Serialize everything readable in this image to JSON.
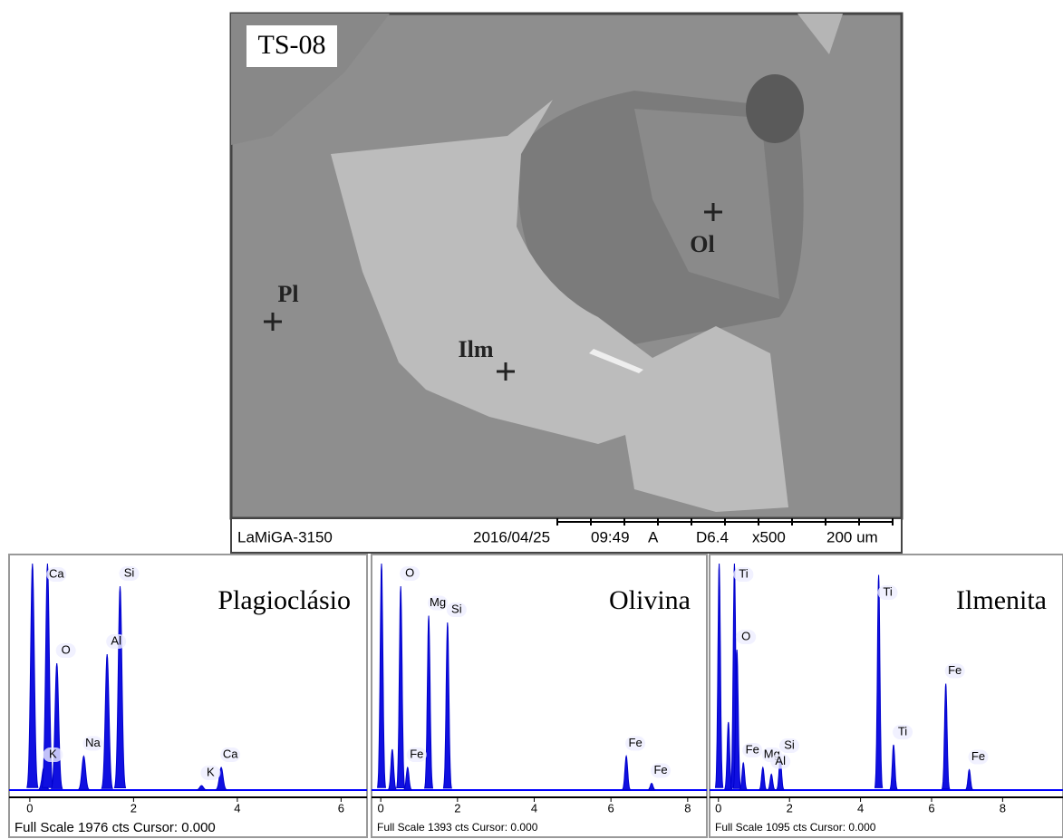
{
  "sem": {
    "sample": "TS-08",
    "points": [
      {
        "label": "Pl"
      },
      {
        "label": "Ilm"
      },
      {
        "label": "Ol"
      }
    ],
    "footer": {
      "instrument": "LaMiGA-3150",
      "date": "2016/04/25",
      "time": "09:49",
      "mode": "A",
      "wd": "D6.4",
      "mag": "x500",
      "scale": "200 um"
    }
  },
  "spectra": [
    {
      "title": "Plagioclásio",
      "xlim": [
        -0.4,
        6.5
      ],
      "xticks": [
        0,
        2,
        4,
        6
      ],
      "footer": "Full Scale 1976 cts Cursor: 0.000",
      "peaks": [
        {
          "energy": 0.05,
          "height": 1.0
        },
        {
          "label": "K",
          "energy": 0.27,
          "height": 0.1
        },
        {
          "label": "Ca",
          "energy": 0.34,
          "height": 1.0
        },
        {
          "label": "O",
          "energy": 0.52,
          "height": 0.56
        },
        {
          "label": "Na",
          "energy": 1.04,
          "height": 0.15
        },
        {
          "label": "Al",
          "energy": 1.49,
          "height": 0.6
        },
        {
          "label": "Si",
          "energy": 1.74,
          "height": 0.9
        },
        {
          "label": "K",
          "energy": 3.31,
          "height": 0.02
        },
        {
          "label": "Ca",
          "energy": 3.69,
          "height": 0.1
        }
      ]
    },
    {
      "title": "Olivina",
      "xlim": [
        -0.24,
        8.5
      ],
      "xticks": [
        0,
        2,
        4,
        6,
        8
      ],
      "footer": "Full Scale 1393 cts Cursor: 0.000",
      "peaks": [
        {
          "energy": 0.02,
          "height": 1.0
        },
        {
          "energy": 0.3,
          "height": 0.18
        },
        {
          "label": "Fe",
          "energy": 0.7,
          "height": 0.1
        },
        {
          "label": "O",
          "energy": 0.52,
          "height": 0.9
        },
        {
          "label": "Mg",
          "energy": 1.25,
          "height": 0.77
        },
        {
          "label": "Si",
          "energy": 1.74,
          "height": 0.74
        },
        {
          "label": "Fe",
          "energy": 6.4,
          "height": 0.15
        },
        {
          "label": "Fe",
          "energy": 7.06,
          "height": 0.03
        }
      ]
    },
    {
      "title": "Ilmenita",
      "xlim": [
        -0.25,
        9.7
      ],
      "xticks": [
        0,
        2,
        4,
        6,
        8
      ],
      "footer": "Full Scale 1095 cts Cursor: 0.000",
      "peaks": [
        {
          "energy": 0.02,
          "height": 1.0
        },
        {
          "energy": 0.28,
          "height": 0.3
        },
        {
          "label": "Ti",
          "energy": 0.45,
          "height": 1.0
        },
        {
          "label": "Fe",
          "energy": 0.7,
          "height": 0.12
        },
        {
          "label": "O",
          "energy": 0.52,
          "height": 0.62
        },
        {
          "label": "Mg",
          "energy": 1.25,
          "height": 0.1
        },
        {
          "label": "Al",
          "energy": 1.49,
          "height": 0.07
        },
        {
          "label": "Si",
          "energy": 1.74,
          "height": 0.14
        },
        {
          "label": "Ti",
          "energy": 4.51,
          "height": 0.95
        },
        {
          "label": "Ti",
          "energy": 4.93,
          "height": 0.2
        },
        {
          "label": "Fe",
          "energy": 6.4,
          "height": 0.47
        },
        {
          "label": "Fe",
          "energy": 7.06,
          "height": 0.09
        }
      ]
    }
  ]
}
